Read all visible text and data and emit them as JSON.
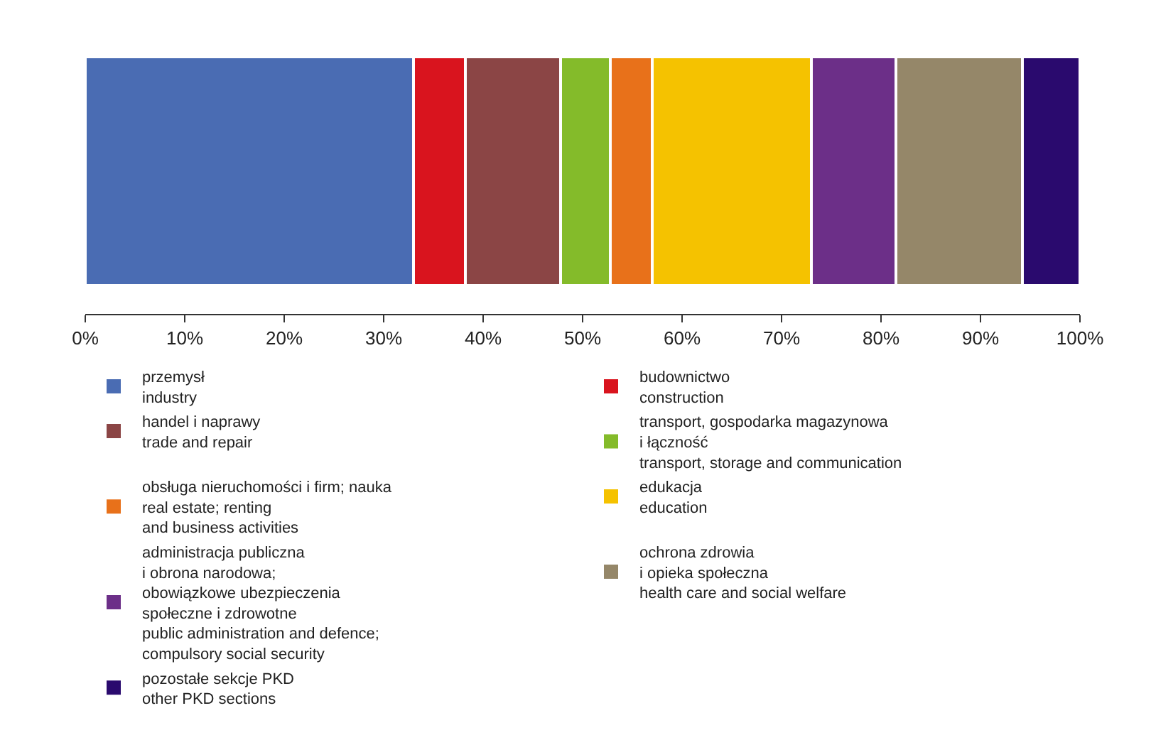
{
  "chart_data": {
    "type": "bar",
    "orientation": "horizontal",
    "stacked": true,
    "categories": [
      null
    ],
    "xlim": [
      0,
      100
    ],
    "xticks": [
      {
        "value": 0,
        "label": "0%"
      },
      {
        "value": 10,
        "label": "10%"
      },
      {
        "value": 20,
        "label": "20%"
      },
      {
        "value": 30,
        "label": "30%"
      },
      {
        "value": 40,
        "label": "40%"
      },
      {
        "value": 50,
        "label": "50%"
      },
      {
        "value": 60,
        "label": "60%"
      },
      {
        "value": 70,
        "label": "70%"
      },
      {
        "value": 80,
        "label": "80%"
      },
      {
        "value": 90,
        "label": "90%"
      },
      {
        "value": 100,
        "label": "100%"
      }
    ],
    "legend": "bottom",
    "series": [
      {
        "name": "przemysł\nindustry",
        "color": "#4a6cb3",
        "values": [
          33.0
        ]
      },
      {
        "name": "budownictwo\nconstruction",
        "color": "#d9141e",
        "values": [
          5.2
        ]
      },
      {
        "name": "handel i naprawy\ntrade and repair",
        "color": "#8b4545",
        "values": [
          9.6
        ]
      },
      {
        "name": "transport, gospodarka magazynowa\ni łączność\ntransport, storage and communication",
        "color": "#84bb2a",
        "values": [
          5.0
        ]
      },
      {
        "name": "obsługa nieruchomości i firm; nauka\nreal estate; renting\nand business activities",
        "color": "#e8711a",
        "values": [
          4.2
        ]
      },
      {
        "name": "edukacja\neducation",
        "color": "#f5c200",
        "values": [
          16.0
        ]
      },
      {
        "name": "administracja publiczna\ni obrona narodowa;\nobowiązkowe ubezpieczenia\nspołeczne i zdrowotne\npublic administration and defence;\ncompulsory social security",
        "color": "#6c2f88",
        "values": [
          8.5
        ]
      },
      {
        "name": "ochrona zdrowia\ni opieka społeczna\nhealth care and social welfare",
        "color": "#958769",
        "values": [
          12.7
        ]
      },
      {
        "name": "pozostałe sekcje PKD\nother PKD sections",
        "color": "#2a0a6e",
        "values": [
          5.8
        ]
      }
    ]
  }
}
